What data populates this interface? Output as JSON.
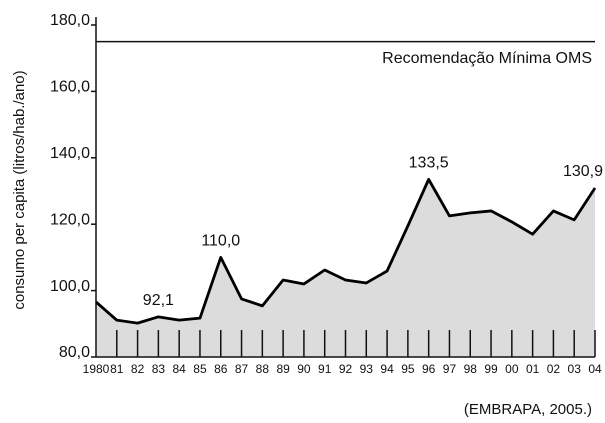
{
  "chart_data": {
    "type": "area",
    "ylabel": "consumo per capita (litros/hab./ano)",
    "source": "(EMBRAPA, 2005.)",
    "categories": [
      "1980",
      "81",
      "82",
      "83",
      "84",
      "85",
      "86",
      "87",
      "88",
      "89",
      "90",
      "91",
      "92",
      "93",
      "94",
      "95",
      "96",
      "97",
      "98",
      "99",
      "00",
      "01",
      "02",
      "03",
      "04"
    ],
    "values": [
      96.6,
      91.1,
      90.2,
      92.1,
      91.1,
      91.7,
      110.0,
      97.5,
      95.4,
      103.2,
      102.0,
      106.2,
      103.2,
      102.3,
      105.9,
      119.5,
      133.5,
      122.5,
      123.4,
      124.0,
      120.7,
      117.0,
      124.0,
      121.3,
      130.9
    ],
    "value_labels": [
      null,
      null,
      null,
      "92,1",
      null,
      null,
      "110,0",
      null,
      null,
      null,
      null,
      null,
      null,
      null,
      null,
      null,
      "133,5",
      null,
      null,
      null,
      null,
      null,
      null,
      null,
      "130,9"
    ],
    "color": "#000000",
    "fill": "#dcdcdc",
    "ylim": [
      80,
      180
    ],
    "yticks": [
      {
        "value": 80,
        "label": "80,0"
      },
      {
        "value": 100,
        "label": "100,0"
      },
      {
        "value": 120,
        "label": "120,0"
      },
      {
        "value": 140,
        "label": "140,0"
      },
      {
        "value": 160,
        "label": "160,0"
      },
      {
        "value": 180,
        "label": "180,0"
      }
    ],
    "reference_line": {
      "value": 175,
      "label": "Recomendação Mínima OMS"
    }
  }
}
